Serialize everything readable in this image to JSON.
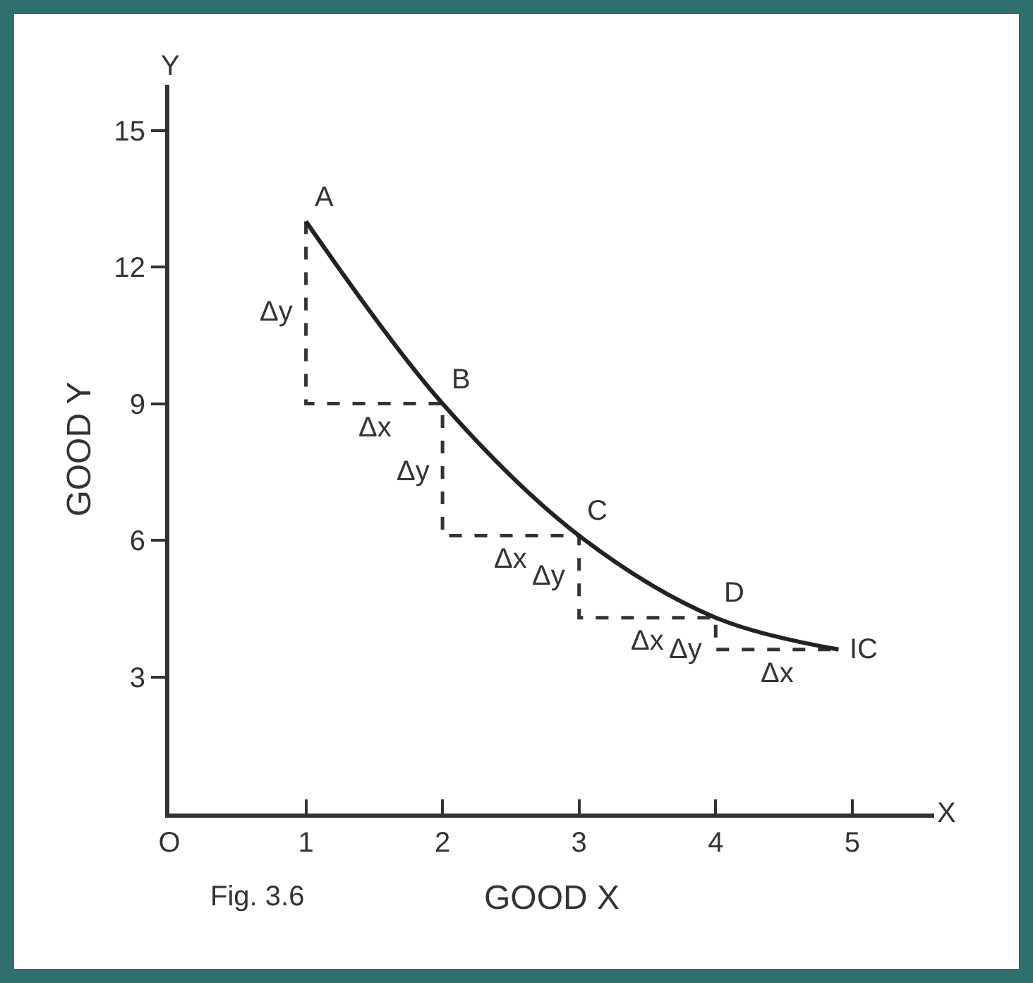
{
  "chart_data": {
    "type": "line",
    "xlabel": "GOOD X",
    "ylabel": "GOOD Y",
    "xlim": [
      0,
      5.6
    ],
    "ylim": [
      0,
      16
    ],
    "xticks": [
      {
        "value": 0,
        "label": "O"
      },
      1,
      2,
      3,
      4,
      5
    ],
    "yticks": [
      3,
      6,
      9,
      12,
      15
    ],
    "grid": false,
    "marker": "none",
    "series": [
      {
        "x": [
          1,
          2,
          3,
          4,
          4.9
        ],
        "values": [
          13,
          9,
          6.1,
          4.3,
          3.6
        ],
        "color": "#222222",
        "line_style": "solid"
      },
      {
        "type": "step",
        "x": [
          1,
          2,
          3,
          4,
          4.9
        ],
        "values": [
          13,
          9,
          6.1,
          4.3,
          3.6
        ],
        "color": "#333333",
        "line_style": "dashed"
      }
    ],
    "annotations": [
      {
        "text": "A",
        "x": 1,
        "y": 13
      },
      {
        "text": "B",
        "x": 2,
        "y": 9
      },
      {
        "text": "C",
        "x": 3,
        "y": 6.1
      },
      {
        "text": "D",
        "x": 4,
        "y": 4.3
      },
      {
        "text": "IC",
        "x": 4.9,
        "y": 3.6
      },
      {
        "text": "Δy",
        "x": 1,
        "y": 11
      },
      {
        "text": "Δx",
        "x": 1.5,
        "y": 9
      },
      {
        "text": "Δy",
        "x": 2,
        "y": 7.5
      },
      {
        "text": "Δx",
        "x": 2.5,
        "y": 6.1
      },
      {
        "text": "Δy",
        "x": 3,
        "y": 5.2
      },
      {
        "text": "Δx",
        "x": 3.5,
        "y": 4.3
      },
      {
        "text": "Δy",
        "x": 4,
        "y": 3.6
      },
      {
        "text": "Δx",
        "x": 4.45,
        "y": 3.6
      },
      "Y",
      "X",
      "Fig. 3.6"
    ]
  }
}
